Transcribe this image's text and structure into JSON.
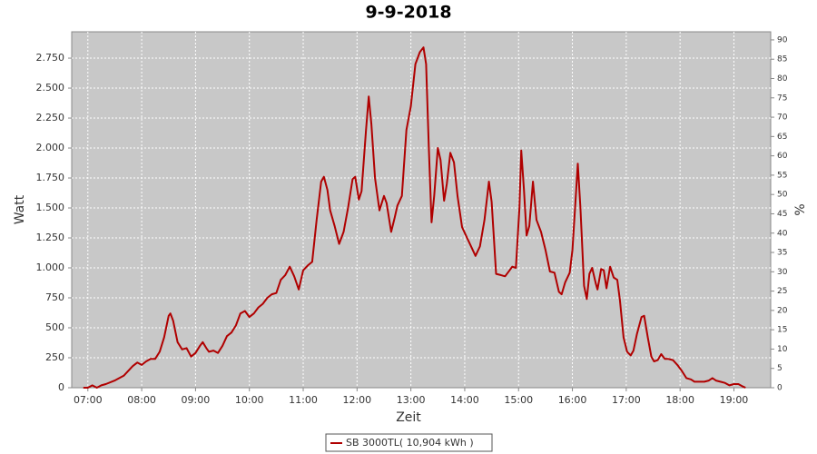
{
  "chart_data": {
    "type": "line",
    "title": "9-9-2018",
    "x_label": "Zeit",
    "y_label": "Watt",
    "y2_label": "%",
    "x": [
      "06:55",
      "07:00",
      "07:05",
      "07:10",
      "07:15",
      "07:20",
      "07:30",
      "07:40",
      "07:50",
      "07:55",
      "08:00",
      "08:05",
      "08:10",
      "08:15",
      "08:20",
      "08:25",
      "08:30",
      "08:32",
      "08:35",
      "08:40",
      "08:45",
      "08:50",
      "08:55",
      "09:00",
      "09:05",
      "09:08",
      "09:12",
      "09:15",
      "09:20",
      "09:25",
      "09:30",
      "09:35",
      "09:40",
      "09:45",
      "09:50",
      "09:55",
      "10:00",
      "10:05",
      "10:10",
      "10:15",
      "10:20",
      "10:25",
      "10:30",
      "10:35",
      "10:40",
      "10:45",
      "10:50",
      "10:55",
      "11:00",
      "11:05",
      "11:10",
      "11:15",
      "11:20",
      "11:23",
      "11:27",
      "11:30",
      "11:35",
      "11:40",
      "11:45",
      "11:50",
      "11:55",
      "11:58",
      "12:02",
      "12:05",
      "12:10",
      "12:13",
      "12:16",
      "12:20",
      "12:25",
      "12:30",
      "12:33",
      "12:38",
      "12:42",
      "12:45",
      "12:50",
      "12:55",
      "13:00",
      "13:05",
      "13:10",
      "13:14",
      "13:17",
      "13:20",
      "13:23",
      "13:26",
      "13:30",
      "13:33",
      "13:37",
      "13:40",
      "13:44",
      "13:48",
      "13:52",
      "13:57",
      "14:02",
      "14:07",
      "14:12",
      "14:17",
      "14:22",
      "14:27",
      "14:30",
      "14:35",
      "14:40",
      "14:45",
      "14:50",
      "14:53",
      "14:57",
      "15:01",
      "15:03",
      "15:06",
      "15:09",
      "15:12",
      "15:16",
      "15:20",
      "15:25",
      "15:30",
      "15:35",
      "15:40",
      "15:45",
      "15:48",
      "15:52",
      "15:57",
      "16:00",
      "16:03",
      "16:06",
      "16:09",
      "16:13",
      "16:16",
      "16:19",
      "16:22",
      "16:26",
      "16:28",
      "16:32",
      "16:35",
      "16:38",
      "16:42",
      "16:46",
      "16:50",
      "16:53",
      "16:57",
      "17:01",
      "17:05",
      "17:08",
      "17:12",
      "17:17",
      "17:20",
      "17:24",
      "17:28",
      "17:31",
      "17:35",
      "17:39",
      "17:43",
      "17:47",
      "17:52",
      "17:57",
      "18:02",
      "18:07",
      "18:12",
      "18:16",
      "18:22",
      "18:27",
      "18:32",
      "18:36",
      "18:40",
      "18:45",
      "18:50",
      "18:55",
      "19:00",
      "19:05",
      "19:10",
      "19:13"
    ],
    "series": [
      {
        "name": "SB 3000TL( 10,904 kWh )",
        "color": "#b00000",
        "values": [
          0,
          0,
          20,
          0,
          20,
          30,
          60,
          100,
          180,
          210,
          190,
          220,
          240,
          240,
          300,
          420,
          600,
          620,
          560,
          380,
          320,
          330,
          260,
          290,
          350,
          380,
          330,
          300,
          310,
          290,
          350,
          430,
          460,
          520,
          620,
          640,
          590,
          620,
          670,
          700,
          750,
          780,
          790,
          900,
          940,
          1010,
          930,
          820,
          980,
          1020,
          1050,
          1400,
          1720,
          1760,
          1650,
          1480,
          1350,
          1200,
          1300,
          1500,
          1740,
          1760,
          1570,
          1640,
          2150,
          2430,
          2200,
          1750,
          1480,
          1600,
          1540,
          1300,
          1420,
          1520,
          1600,
          2150,
          2350,
          2700,
          2800,
          2840,
          2700,
          2000,
          1380,
          1600,
          2000,
          1900,
          1560,
          1700,
          1960,
          1880,
          1600,
          1340,
          1260,
          1180,
          1100,
          1180,
          1400,
          1720,
          1550,
          950,
          940,
          930,
          980,
          1010,
          1000,
          1500,
          1980,
          1650,
          1270,
          1350,
          1720,
          1400,
          1300,
          1150,
          970,
          960,
          800,
          780,
          880,
          960,
          1150,
          1500,
          1870,
          1500,
          850,
          740,
          950,
          1000,
          870,
          820,
          990,
          980,
          830,
          1010,
          920,
          900,
          730,
          420,
          300,
          270,
          310,
          450,
          590,
          600,
          420,
          260,
          220,
          230,
          280,
          240,
          240,
          230,
          190,
          140,
          80,
          70,
          50,
          50,
          50,
          60,
          80,
          60,
          50,
          40,
          20,
          30,
          30,
          10,
          0
        ]
      }
    ],
    "xlim": [
      "06:42",
      "19:41"
    ],
    "xticks": [
      "07:00",
      "08:00",
      "09:00",
      "10:00",
      "11:00",
      "12:00",
      "13:00",
      "14:00",
      "15:00",
      "16:00",
      "17:00",
      "18:00",
      "19:00"
    ],
    "ylim": [
      0,
      2970
    ],
    "yticks": [
      0,
      250,
      500,
      750,
      {
        "value": 1000,
        "label": "1.000"
      },
      {
        "value": 1250,
        "label": "1.250"
      },
      {
        "value": 1500,
        "label": "1.500"
      },
      {
        "value": 1750,
        "label": "1.750"
      },
      {
        "value": 2000,
        "label": "2.000"
      },
      {
        "value": 2250,
        "label": "2.250"
      },
      {
        "value": 2500,
        "label": "2.500"
      },
      {
        "value": 2750,
        "label": "2.750"
      }
    ],
    "y2lim": [
      0,
      92.1
    ],
    "y2ticks": [
      0,
      5,
      10,
      15,
      20,
      25,
      30,
      35,
      40,
      45,
      50,
      55,
      60,
      65,
      70,
      75,
      80,
      85,
      90
    ],
    "grid": true
  }
}
